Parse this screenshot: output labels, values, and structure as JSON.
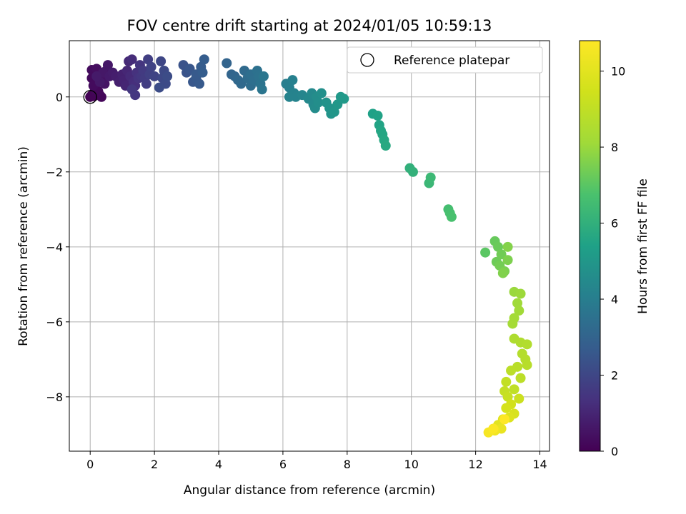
{
  "chart_data": {
    "type": "scatter",
    "title": "FOV centre drift starting at 2024/01/05 10:59:13",
    "xlabel": "Angular distance from reference (arcmin)",
    "ylabel": "Rotation from reference (arcmin)",
    "colorbar_label": "Hours from first FF file",
    "xlim": [
      -0.65,
      14.3
    ],
    "ylim": [
      -9.45,
      1.5
    ],
    "colorbar_range": [
      0,
      10.8
    ],
    "colormap": "viridis",
    "grid": true,
    "legend": {
      "placement": "top-right",
      "entries": [
        "Reference platepar"
      ]
    },
    "x_ticks": [
      "0",
      "2",
      "4",
      "6",
      "8",
      "10",
      "12",
      "14"
    ],
    "y_ticks": [
      "0",
      "−2",
      "−4",
      "−6",
      "−8"
    ],
    "colorbar_ticks": [
      "0",
      "2",
      "4",
      "6",
      "8",
      "10"
    ],
    "reference_point": {
      "x": 0,
      "y": 0
    },
    "points": [
      [
        0.0,
        0.0,
        0.0
      ],
      [
        0.05,
        0.05,
        0.05
      ],
      [
        0.12,
        0.02,
        0.08
      ],
      [
        0.2,
        0.1,
        0.1
      ],
      [
        0.3,
        0.05,
        0.12
      ],
      [
        0.35,
        0.0,
        0.15
      ],
      [
        0.25,
        0.15,
        0.18
      ],
      [
        0.15,
        0.2,
        0.2
      ],
      [
        0.05,
        0.5,
        0.25
      ],
      [
        0.1,
        0.3,
        0.28
      ],
      [
        0.05,
        0.72,
        0.3
      ],
      [
        0.2,
        0.75,
        0.35
      ],
      [
        0.3,
        0.55,
        0.4
      ],
      [
        0.4,
        0.5,
        0.45
      ],
      [
        0.45,
        0.35,
        0.5
      ],
      [
        0.5,
        0.7,
        0.55
      ],
      [
        0.55,
        0.85,
        0.6
      ],
      [
        0.4,
        0.65,
        0.62
      ],
      [
        0.3,
        0.4,
        0.65
      ],
      [
        0.2,
        0.55,
        0.68
      ],
      [
        0.6,
        0.55,
        0.7
      ],
      [
        0.7,
        0.65,
        0.75
      ],
      [
        0.8,
        0.55,
        0.8
      ],
      [
        0.9,
        0.4,
        0.85
      ],
      [
        1.0,
        0.6,
        0.9
      ],
      [
        1.05,
        0.45,
        0.95
      ],
      [
        1.1,
        0.3,
        1.0
      ],
      [
        1.15,
        0.7,
        1.05
      ],
      [
        1.2,
        0.95,
        1.1
      ],
      [
        1.25,
        0.55,
        1.15
      ],
      [
        1.3,
        1.0,
        1.2
      ],
      [
        1.35,
        0.4,
        1.25
      ],
      [
        1.4,
        0.3,
        1.3
      ],
      [
        1.45,
        0.65,
        1.35
      ],
      [
        1.5,
        0.5,
        1.4
      ],
      [
        1.55,
        0.85,
        1.45
      ],
      [
        1.6,
        0.55,
        1.5
      ],
      [
        1.4,
        0.05,
        1.5
      ],
      [
        1.3,
        0.2,
        1.55
      ],
      [
        1.65,
        0.7,
        1.6
      ],
      [
        1.7,
        0.5,
        1.65
      ],
      [
        1.75,
        0.35,
        1.7
      ],
      [
        1.8,
        1.0,
        1.75
      ],
      [
        1.85,
        0.6,
        1.8
      ],
      [
        1.9,
        0.8,
        1.85
      ],
      [
        2.0,
        0.55,
        1.9
      ],
      [
        2.2,
        0.95,
        2.0
      ],
      [
        2.25,
        0.5,
        2.05
      ],
      [
        2.3,
        0.7,
        2.1
      ],
      [
        2.35,
        0.35,
        2.15
      ],
      [
        2.4,
        0.55,
        2.2
      ],
      [
        2.15,
        0.25,
        2.2
      ],
      [
        2.9,
        0.85,
        2.4
      ],
      [
        3.0,
        0.65,
        2.45
      ],
      [
        3.1,
        0.75,
        2.5
      ],
      [
        3.2,
        0.4,
        2.55
      ],
      [
        3.3,
        0.5,
        2.6
      ],
      [
        3.4,
        0.35,
        2.65
      ],
      [
        3.3,
        0.6,
        2.65
      ],
      [
        3.45,
        0.8,
        2.7
      ],
      [
        3.55,
        1.0,
        2.75
      ],
      [
        3.5,
        0.65,
        2.75
      ],
      [
        4.25,
        0.9,
        3.0
      ],
      [
        4.4,
        0.6,
        3.05
      ],
      [
        4.5,
        0.55,
        3.1
      ],
      [
        4.6,
        0.45,
        3.15
      ],
      [
        4.7,
        0.35,
        3.2
      ],
      [
        4.8,
        0.7,
        3.25
      ],
      [
        4.9,
        0.5,
        3.3
      ],
      [
        5.0,
        0.3,
        3.35
      ],
      [
        5.0,
        0.6,
        3.4
      ],
      [
        5.1,
        0.45,
        3.45
      ],
      [
        5.2,
        0.7,
        3.5
      ],
      [
        5.25,
        0.55,
        3.55
      ],
      [
        5.3,
        0.35,
        3.6
      ],
      [
        5.35,
        0.2,
        3.65
      ],
      [
        5.4,
        0.55,
        3.7
      ],
      [
        6.1,
        0.35,
        4.0
      ],
      [
        6.2,
        0.25,
        4.05
      ],
      [
        6.3,
        0.45,
        4.1
      ],
      [
        6.35,
        0.1,
        4.15
      ],
      [
        6.4,
        0.0,
        4.2
      ],
      [
        6.2,
        0.0,
        4.2
      ],
      [
        6.6,
        0.05,
        4.3
      ],
      [
        6.8,
        -0.05,
        4.4
      ],
      [
        6.9,
        0.1,
        4.45
      ],
      [
        6.95,
        -0.2,
        4.5
      ],
      [
        7.0,
        -0.3,
        4.55
      ],
      [
        7.05,
        0.0,
        4.6
      ],
      [
        7.1,
        -0.15,
        4.65
      ],
      [
        7.2,
        0.1,
        4.7
      ],
      [
        7.35,
        -0.15,
        4.8
      ],
      [
        7.45,
        -0.3,
        4.85
      ],
      [
        7.5,
        -0.45,
        4.9
      ],
      [
        7.6,
        -0.4,
        4.95
      ],
      [
        7.7,
        -0.2,
        5.0
      ],
      [
        7.8,
        0.0,
        5.05
      ],
      [
        7.9,
        -0.05,
        5.1
      ],
      [
        8.8,
        -0.45,
        5.4
      ],
      [
        8.95,
        -0.5,
        5.45
      ],
      [
        9.0,
        -0.75,
        5.5
      ],
      [
        9.05,
        -0.9,
        5.55
      ],
      [
        9.1,
        -1.0,
        5.6
      ],
      [
        9.15,
        -1.15,
        5.65
      ],
      [
        9.2,
        -1.3,
        5.7
      ],
      [
        9.95,
        -1.9,
        6.0
      ],
      [
        10.05,
        -2.0,
        6.05
      ],
      [
        10.55,
        -2.3,
        6.3
      ],
      [
        10.6,
        -2.15,
        6.35
      ],
      [
        11.15,
        -3.0,
        6.6
      ],
      [
        11.2,
        -3.1,
        6.65
      ],
      [
        11.25,
        -3.2,
        6.7
      ],
      [
        12.3,
        -4.15,
        7.0
      ],
      [
        12.6,
        -3.85,
        7.2
      ],
      [
        12.7,
        -4.0,
        7.25
      ],
      [
        12.65,
        -4.4,
        7.3
      ],
      [
        12.8,
        -4.2,
        7.35
      ],
      [
        12.75,
        -4.5,
        7.4
      ],
      [
        12.9,
        -4.65,
        7.5
      ],
      [
        13.0,
        -4.35,
        7.55
      ],
      [
        12.85,
        -4.7,
        7.6
      ],
      [
        13.0,
        -4.0,
        7.65
      ],
      [
        13.2,
        -5.2,
        8.0
      ],
      [
        13.4,
        -5.25,
        8.05
      ],
      [
        13.3,
        -5.5,
        8.1
      ],
      [
        13.35,
        -5.7,
        8.15
      ],
      [
        13.2,
        -5.9,
        8.2
      ],
      [
        13.15,
        -6.05,
        8.25
      ],
      [
        13.2,
        -6.45,
        8.5
      ],
      [
        13.4,
        -6.55,
        8.55
      ],
      [
        13.6,
        -6.6,
        8.6
      ],
      [
        13.45,
        -6.85,
        8.65
      ],
      [
        13.55,
        -7.0,
        8.7
      ],
      [
        13.6,
        -7.15,
        8.75
      ],
      [
        13.3,
        -7.2,
        8.8
      ],
      [
        13.1,
        -7.3,
        8.85
      ],
      [
        13.4,
        -7.5,
        8.9
      ],
      [
        13.2,
        -7.8,
        9.0
      ],
      [
        12.95,
        -7.6,
        9.05
      ],
      [
        12.9,
        -7.85,
        9.1
      ],
      [
        13.0,
        -8.0,
        9.2
      ],
      [
        13.35,
        -8.05,
        9.3
      ],
      [
        13.1,
        -8.2,
        9.5
      ],
      [
        12.95,
        -8.3,
        9.6
      ],
      [
        13.2,
        -8.45,
        9.7
      ],
      [
        13.05,
        -8.55,
        9.8
      ],
      [
        12.85,
        -8.6,
        9.9
      ],
      [
        12.7,
        -8.75,
        10.0
      ],
      [
        12.8,
        -8.85,
        10.2
      ],
      [
        12.6,
        -8.9,
        10.4
      ],
      [
        12.4,
        -8.95,
        10.6
      ],
      [
        12.55,
        -8.85,
        10.7
      ],
      [
        12.9,
        -8.6,
        10.8
      ]
    ]
  }
}
